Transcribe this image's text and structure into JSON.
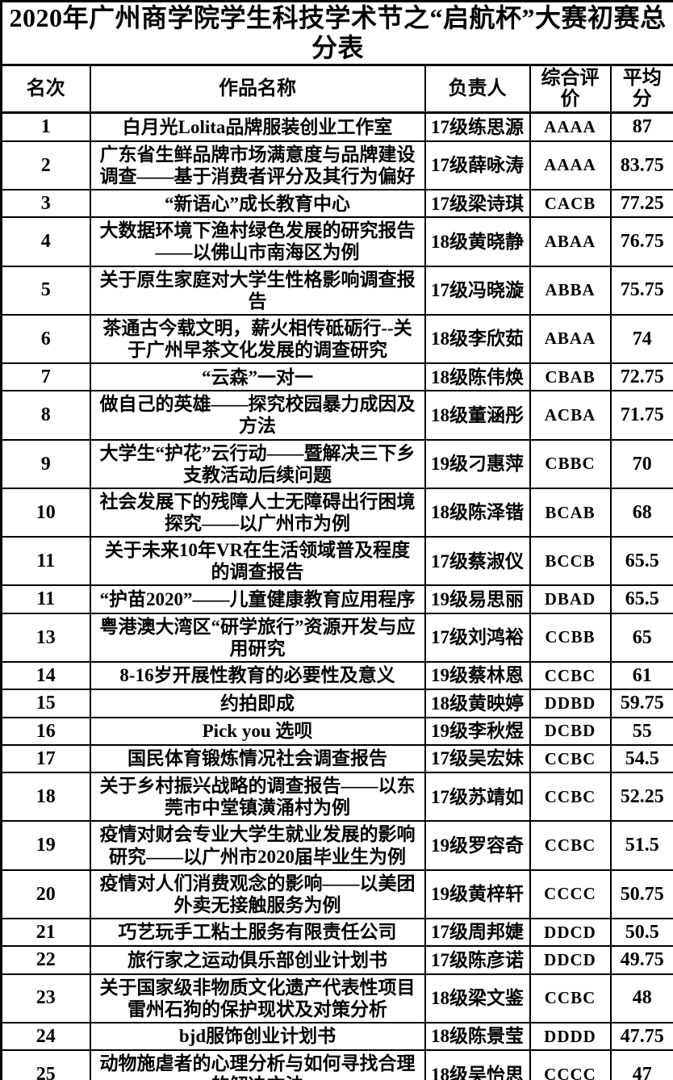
{
  "title": "2020年广州商学院学生科技学术节之“启航杯”大赛初赛总分表",
  "table": {
    "headers": [
      "名次",
      "作品名称",
      "负责人",
      "综合评价",
      "平均分"
    ],
    "rows": [
      {
        "rank": "1",
        "work": "白月光Lolita品牌服装创业工作室",
        "leader": "17级练思源",
        "evaluation": "AAAA",
        "average": "87"
      },
      {
        "rank": "2",
        "work": "广东省生鲜品牌市场满意度与品牌建设调查——基于消费者评分及其行为偏好",
        "leader": "17级薛咏涛",
        "evaluation": "AAAA",
        "average": "83.75"
      },
      {
        "rank": "3",
        "work": "“新语心”成长教育中心",
        "leader": "17级梁诗琪",
        "evaluation": "CACB",
        "average": "77.25"
      },
      {
        "rank": "4",
        "work": "大数据环境下渔村绿色发展的研究报告——以佛山市南海区为例",
        "leader": "18级黄晓静",
        "evaluation": "ABAA",
        "average": "76.75"
      },
      {
        "rank": "5",
        "work": "关于原生家庭对大学生性格影响调查报告",
        "leader": "17级冯晓漩",
        "evaluation": "ABBA",
        "average": "75.75"
      },
      {
        "rank": "6",
        "work": "茶通古今载文明，薪火相传砥砺行--关于广州早茶文化发展的调查研究",
        "leader": "18级李欣茹",
        "evaluation": "ABAA",
        "average": "74"
      },
      {
        "rank": "7",
        "work": "“云森”一对一",
        "leader": "18级陈伟焕",
        "evaluation": "CBAB",
        "average": "72.75"
      },
      {
        "rank": "8",
        "work": "做自己的英雄——探究校园暴力成因及方法",
        "leader": "18级董涵彤",
        "evaluation": "ACBA",
        "average": "71.75"
      },
      {
        "rank": "9",
        "work": "大学生“护花”云行动——暨解决三下乡支教活动后续问题",
        "leader": "19级刁惠萍",
        "evaluation": "CBBC",
        "average": "70"
      },
      {
        "rank": "10",
        "work": "社会发展下的残障人士无障碍出行困境探究——以广州市为例",
        "leader": "18级陈泽锴",
        "evaluation": "BCAB",
        "average": "68"
      },
      {
        "rank": "11",
        "work": "关于未来10年VR在生活领域普及程度的调查报告",
        "leader": "17级蔡淑仪",
        "evaluation": "BCCB",
        "average": "65.5"
      },
      {
        "rank": "11",
        "work": "“护苗2020”——儿童健康教育应用程序",
        "leader": "19级易思丽",
        "evaluation": "DBAD",
        "average": "65.5"
      },
      {
        "rank": "13",
        "work": "粤港澳大湾区“研学旅行”资源开发与应用研究",
        "leader": "17级刘鸿裕",
        "evaluation": "CCBB",
        "average": "65"
      },
      {
        "rank": "14",
        "work": "8-16岁开展性教育的必要性及意义",
        "leader": "19级蔡林恩",
        "evaluation": "CCBC",
        "average": "61"
      },
      {
        "rank": "15",
        "work": "约拍即成",
        "leader": "18级黄映婷",
        "evaluation": "DDBD",
        "average": "59.75"
      },
      {
        "rank": "16",
        "work": "Pick you 选呗",
        "leader": "19级李秋煜",
        "evaluation": "DCBD",
        "average": "55"
      },
      {
        "rank": "17",
        "work": "国民体育锻炼情况社会调查报告",
        "leader": "17级吴宏妹",
        "evaluation": "CCBC",
        "average": "54.5"
      },
      {
        "rank": "18",
        "work": "关于乡村振兴战略的调查报告——以东莞市中堂镇潢涌村为例",
        "leader": "17级苏靖如",
        "evaluation": "CCBC",
        "average": "52.25"
      },
      {
        "rank": "19",
        "work": "疫情对财会专业大学生就业发展的影响研究——以广州市2020届毕业生为例",
        "leader": "19级罗容奇",
        "evaluation": "CCBC",
        "average": "51.5"
      },
      {
        "rank": "20",
        "work": "疫情对人们消费观念的影响——以美团外卖无接触服务为例",
        "leader": "19级黄梓轩",
        "evaluation": "CCCC",
        "average": "50.75"
      },
      {
        "rank": "21",
        "work": "巧艺玩手工粘土服务有限责任公司",
        "leader": "17级周邦婕",
        "evaluation": "DDCD",
        "average": "50.5"
      },
      {
        "rank": "22",
        "work": "旅行家之运动俱乐部创业计划书",
        "leader": "17级陈彦诺",
        "evaluation": "DDCD",
        "average": "49.75"
      },
      {
        "rank": "23",
        "work": "关于国家级非物质文化遗产代表性项目雷州石狗的保护现状及对策分析",
        "leader": "18级梁文鉴",
        "evaluation": "CCBC",
        "average": "48"
      },
      {
        "rank": "24",
        "work": "bjd服饰创业计划书",
        "leader": "18级陈景莹",
        "evaluation": "DDDD",
        "average": "47.75"
      },
      {
        "rank": "25",
        "work": "动物施虐者的心理分析与如何寻找合理的解决方法",
        "leader": "18级吴怡思",
        "evaluation": "CCCC",
        "average": "47"
      }
    ]
  },
  "colors": {
    "border": "#000000",
    "background": "#ffffff",
    "text": "#000000"
  }
}
